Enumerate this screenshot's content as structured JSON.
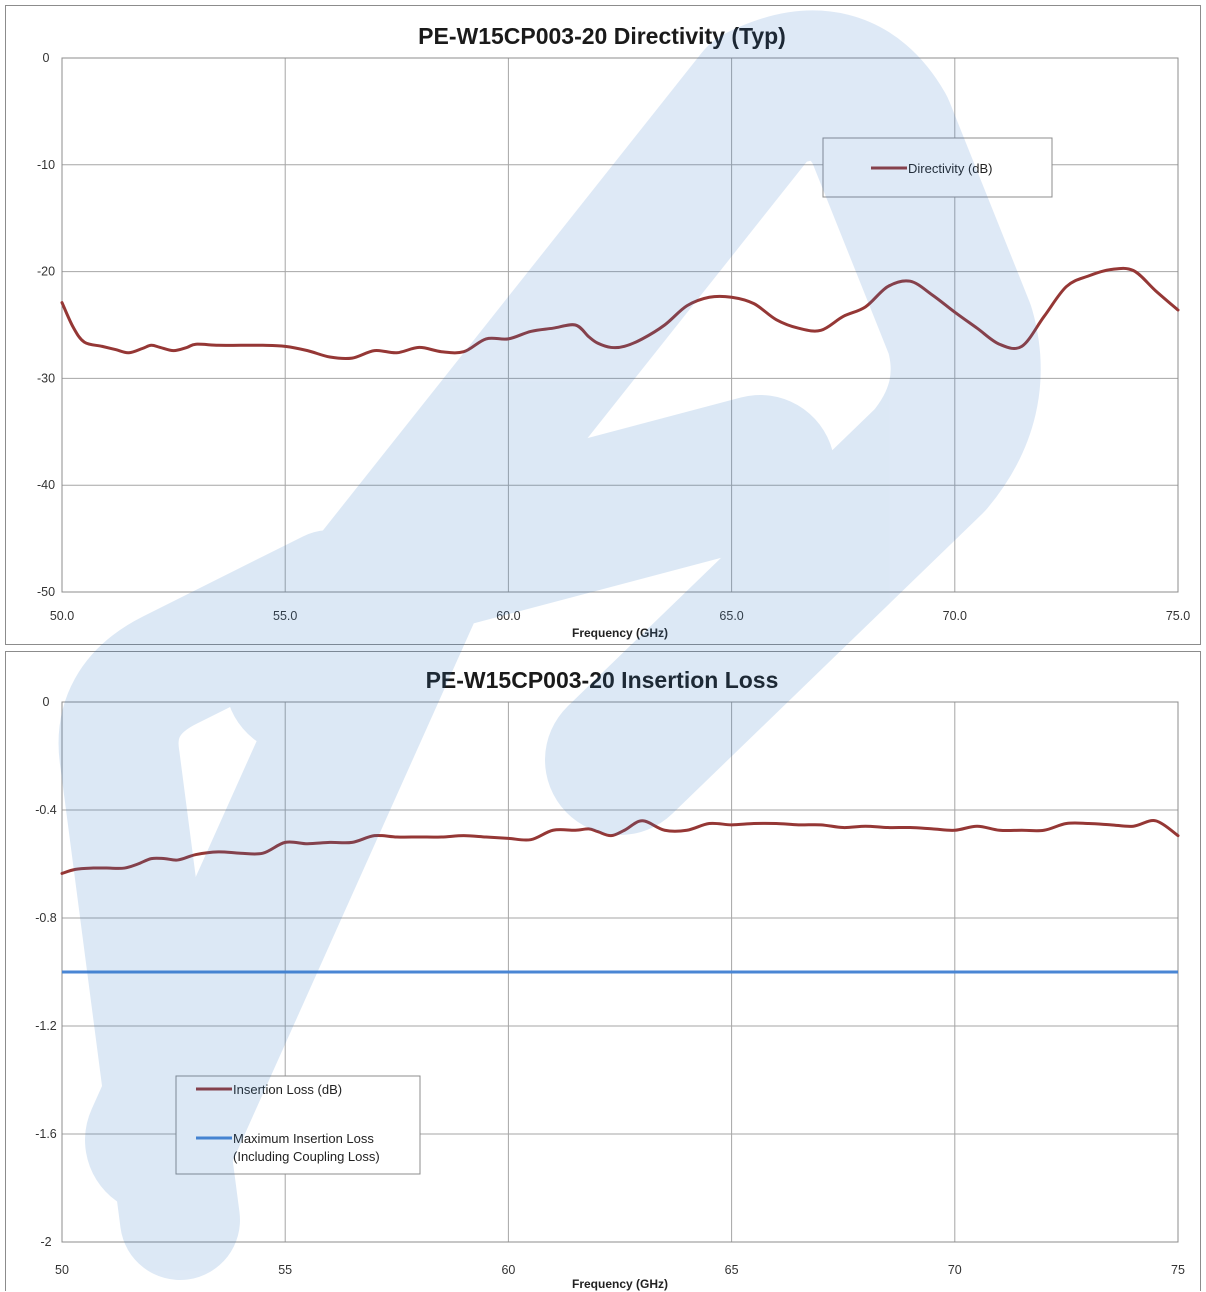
{
  "chart_data": [
    {
      "type": "line",
      "title": "PE-W15CP003-20 Directivity (Typ)",
      "xlabel": "Frequency (GHz)",
      "ylabel": "",
      "xlim": [
        50,
        75
      ],
      "ylim": [
        -50,
        0
      ],
      "x_ticks": [
        "50.0",
        "55.0",
        "60.0",
        "65.0",
        "70.0",
        "75.0"
      ],
      "y_ticks": [
        "0",
        "-10",
        "-20",
        "-30",
        "-40",
        "-50"
      ],
      "grid": true,
      "legend_position": "top-right",
      "series": [
        {
          "name": "Directivity (dB)",
          "color": "#953735",
          "x": [
            50.0,
            50.25,
            50.5,
            50.9,
            51.2,
            51.5,
            51.8,
            52.0,
            52.2,
            52.5,
            52.8,
            53.0,
            53.5,
            54.0,
            54.5,
            55.0,
            55.5,
            56.0,
            56.5,
            57.0,
            57.5,
            58.0,
            58.5,
            59.0,
            59.5,
            60.0,
            60.5,
            61.0,
            61.5,
            61.8,
            62.0,
            62.3,
            62.6,
            63.0,
            63.5,
            64.0,
            64.5,
            65.0,
            65.5,
            66.0,
            66.5,
            67.0,
            67.5,
            68.0,
            68.5,
            69.0,
            69.5,
            70.0,
            70.5,
            71.0,
            71.5,
            72.0,
            72.5,
            73.0,
            73.5,
            74.0,
            74.5,
            75.0
          ],
          "values": [
            -22.9,
            -25.2,
            -26.6,
            -27.0,
            -27.3,
            -27.6,
            -27.2,
            -26.9,
            -27.1,
            -27.4,
            -27.1,
            -26.8,
            -26.9,
            -26.9,
            -26.9,
            -27.0,
            -27.4,
            -28.0,
            -28.1,
            -27.4,
            -27.6,
            -27.1,
            -27.5,
            -27.5,
            -26.3,
            -26.3,
            -25.6,
            -25.3,
            -25.0,
            -26.1,
            -26.7,
            -27.1,
            -27.0,
            -26.3,
            -25.0,
            -23.2,
            -22.4,
            -22.4,
            -23.0,
            -24.5,
            -25.3,
            -25.5,
            -24.2,
            -23.3,
            -21.4,
            -20.9,
            -22.2,
            -23.8,
            -25.3,
            -26.8,
            -27.0,
            -24.2,
            -21.4,
            -20.4,
            -19.8,
            -19.9,
            -21.8,
            -23.6
          ]
        }
      ]
    },
    {
      "type": "line",
      "title": "PE-W15CP003-20 Insertion Loss",
      "xlabel": "Frequency (GHz)",
      "ylabel": "",
      "xlim": [
        50,
        75
      ],
      "ylim": [
        -2,
        0
      ],
      "x_ticks": [
        "50",
        "55",
        "60",
        "65",
        "70",
        "75"
      ],
      "y_ticks": [
        "0",
        "-0.4",
        "-0.8",
        "-1.2",
        "-1.6",
        "-2"
      ],
      "grid": true,
      "legend_position": "bottom-left",
      "series": [
        {
          "name": "Insertion Loss (dB)",
          "color": "#953735",
          "x": [
            50.0,
            50.3,
            50.7,
            51.0,
            51.4,
            51.7,
            52.0,
            52.3,
            52.6,
            53.0,
            53.5,
            54.0,
            54.5,
            55.0,
            55.5,
            56.0,
            56.5,
            57.0,
            57.5,
            58.0,
            58.5,
            59.0,
            59.5,
            60.0,
            60.5,
            61.0,
            61.5,
            61.8,
            62.0,
            62.3,
            62.6,
            63.0,
            63.5,
            64.0,
            64.5,
            65.0,
            65.5,
            66.0,
            66.5,
            67.0,
            67.5,
            68.0,
            68.5,
            69.0,
            69.5,
            70.0,
            70.5,
            71.0,
            71.5,
            72.0,
            72.5,
            73.0,
            73.5,
            74.0,
            74.5,
            75.0
          ],
          "values": [
            -0.635,
            -0.62,
            -0.615,
            -0.615,
            -0.615,
            -0.6,
            -0.58,
            -0.58,
            -0.585,
            -0.565,
            -0.555,
            -0.56,
            -0.56,
            -0.52,
            -0.525,
            -0.52,
            -0.52,
            -0.495,
            -0.5,
            -0.5,
            -0.5,
            -0.495,
            -0.5,
            -0.505,
            -0.51,
            -0.475,
            -0.475,
            -0.47,
            -0.48,
            -0.495,
            -0.475,
            -0.44,
            -0.475,
            -0.475,
            -0.45,
            -0.455,
            -0.45,
            -0.45,
            -0.455,
            -0.455,
            -0.465,
            -0.46,
            -0.465,
            -0.465,
            -0.47,
            -0.475,
            -0.46,
            -0.475,
            -0.475,
            -0.475,
            -0.45,
            -0.45,
            -0.455,
            -0.46,
            -0.44,
            -0.495
          ]
        },
        {
          "name": "Maximum Insertion Loss (Including Coupling Loss)",
          "name_lines": [
            "Maximum Insertion Loss",
            "(Including Coupling Loss)"
          ],
          "color": "#4a86d4",
          "x": [
            50,
            75
          ],
          "values": [
            -1.0,
            -1.0
          ]
        }
      ]
    }
  ]
}
